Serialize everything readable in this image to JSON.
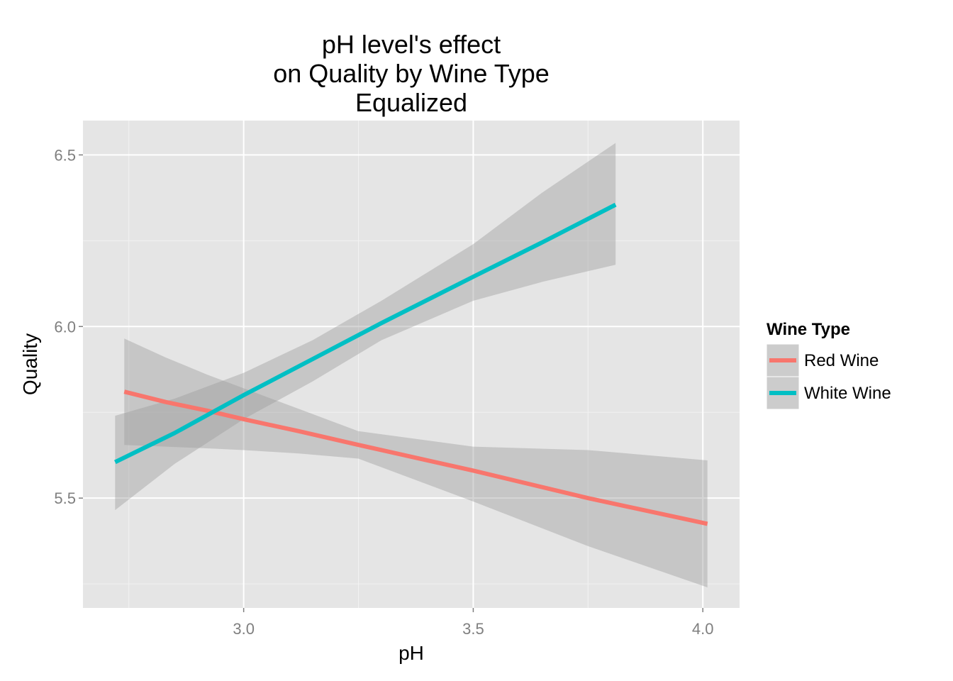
{
  "chart_data": {
    "type": "line",
    "title": [
      "pH level's effect",
      "on Quality by Wine Type",
      "Equalized"
    ],
    "xlabel": "pH",
    "ylabel": "Quality",
    "xlim": [
      2.65,
      4.08
    ],
    "ylim": [
      5.18,
      6.6
    ],
    "x_ticks": [
      3.0,
      3.5,
      4.0
    ],
    "x_tick_labels": [
      "3.0",
      "3.5",
      "4.0"
    ],
    "y_ticks": [
      5.5,
      6.0,
      6.5
    ],
    "y_tick_labels": [
      "5.5",
      "6.0",
      "6.5"
    ],
    "x_minor": [
      2.75,
      3.25,
      3.75
    ],
    "y_minor": [
      5.25,
      5.75,
      6.25
    ],
    "grid": true,
    "legend": {
      "title": "Wine Type",
      "placement": "right"
    },
    "series": [
      {
        "name": "Red Wine",
        "color": "#F8766D",
        "x": [
          2.74,
          2.83,
          2.92,
          3.0,
          3.12,
          3.25,
          3.5,
          3.75,
          4.01
        ],
        "y": [
          5.81,
          5.78,
          5.755,
          5.73,
          5.695,
          5.655,
          5.58,
          5.5,
          5.425
        ],
        "lower": [
          5.655,
          5.65,
          5.645,
          5.64,
          5.63,
          5.615,
          5.49,
          5.36,
          5.24
        ],
        "upper": [
          5.965,
          5.91,
          5.86,
          5.82,
          5.76,
          5.695,
          5.65,
          5.64,
          5.61
        ]
      },
      {
        "name": "White Wine",
        "color": "#00BFC4",
        "x": [
          2.72,
          2.85,
          3.0,
          3.15,
          3.3,
          3.5,
          3.65,
          3.81
        ],
        "y": [
          5.605,
          5.69,
          5.8,
          5.905,
          6.01,
          6.145,
          6.245,
          6.355
        ],
        "lower": [
          5.465,
          5.6,
          5.73,
          5.84,
          5.96,
          6.075,
          6.13,
          6.18
        ],
        "upper": [
          5.74,
          5.79,
          5.865,
          5.96,
          6.075,
          6.24,
          6.39,
          6.535
        ]
      }
    ]
  }
}
